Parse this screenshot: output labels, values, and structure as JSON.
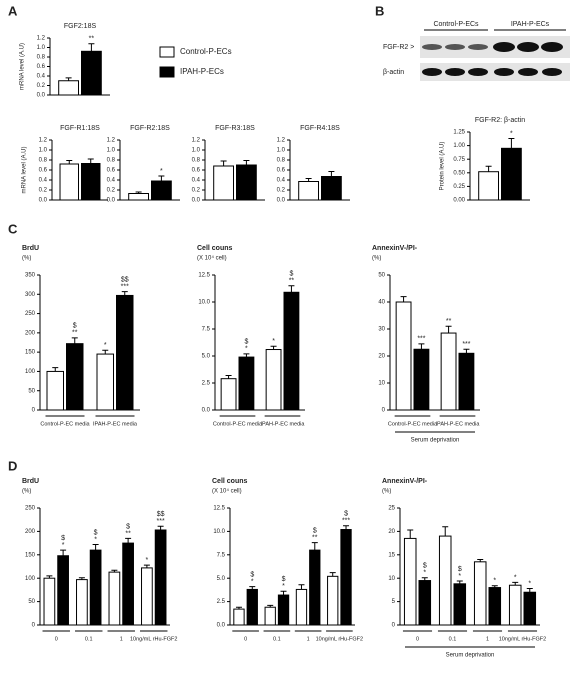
{
  "panels": [
    "A",
    "B",
    "C",
    "D"
  ],
  "legend": [
    {
      "name": "Control-P-ECs",
      "color": "#ffffff"
    },
    {
      "name": "IPAH-P-ECs",
      "color": "#000000"
    }
  ],
  "blot": {
    "lanes": [
      "Control-P-ECs",
      "IPAH-P-ECs"
    ],
    "rows": [
      "FGF-R2 >",
      "β-actin"
    ]
  },
  "chart_data": [
    {
      "type": "bar",
      "title": "FGF2:18S",
      "ylabel": "mRNA level (A.U)",
      "categories": [
        null
      ],
      "ylim": [
        0,
        1.2
      ],
      "yticks": [
        {
          "value": 0,
          "label": "0.0"
        },
        0.2,
        0.4,
        0.6,
        0.8,
        {
          "value": 1,
          "label": "1.0"
        },
        1.2
      ],
      "series": [
        {
          "color": "#ffffff",
          "values": [
            0.3
          ],
          "errors": [
            0.06
          ]
        },
        {
          "color": "#000000",
          "values": [
            0.92
          ],
          "errors": [
            0.16
          ],
          "annotations": [
            [
              "**"
            ]
          ]
        }
      ]
    },
    {
      "type": "bar",
      "title": "FGF-R1:18S",
      "ylabel": "mRNA level (A.U)",
      "categories": [
        null
      ],
      "ylim": [
        0,
        1.2
      ],
      "yticks": [
        {
          "value": 0,
          "label": "0.0"
        },
        0.2,
        0.4,
        0.6,
        0.8,
        {
          "value": 1,
          "label": "1.0"
        },
        1.2
      ],
      "series": [
        {
          "color": "#ffffff",
          "values": [
            0.72
          ],
          "errors": [
            0.07
          ]
        },
        {
          "color": "#000000",
          "values": [
            0.73
          ],
          "errors": [
            0.09
          ]
        }
      ]
    },
    {
      "type": "bar",
      "title": "FGF-R2:18S",
      "categories": [
        null
      ],
      "ylim": [
        0,
        1.2
      ],
      "yticks": [
        {
          "value": 0,
          "label": "0.0"
        },
        0.2,
        0.4,
        0.6,
        0.8,
        {
          "value": 1,
          "label": "1.0"
        },
        1.2
      ],
      "series": [
        {
          "color": "#ffffff",
          "values": [
            0.13
          ],
          "errors": [
            0.03
          ]
        },
        {
          "color": "#000000",
          "values": [
            0.38
          ],
          "errors": [
            0.1
          ],
          "annotations": [
            [
              "*"
            ]
          ]
        }
      ]
    },
    {
      "type": "bar",
      "title": "FGF-R3:18S",
      "categories": [
        null
      ],
      "ylim": [
        0,
        1.2
      ],
      "yticks": [
        {
          "value": 0,
          "label": "0.0"
        },
        0.2,
        0.4,
        0.6,
        0.8,
        {
          "value": 1,
          "label": "1.0"
        },
        1.2
      ],
      "series": [
        {
          "color": "#ffffff",
          "values": [
            0.68
          ],
          "errors": [
            0.1
          ]
        },
        {
          "color": "#000000",
          "values": [
            0.7
          ],
          "errors": [
            0.09
          ]
        }
      ]
    },
    {
      "type": "bar",
      "title": "FGF-R4:18S",
      "categories": [
        null
      ],
      "ylim": [
        0,
        1.2
      ],
      "yticks": [
        {
          "value": 0,
          "label": "0.0"
        },
        0.2,
        0.4,
        0.6,
        0.8,
        {
          "value": 1,
          "label": "1.0"
        },
        1.2
      ],
      "series": [
        {
          "color": "#ffffff",
          "values": [
            0.37
          ],
          "errors": [
            0.06
          ]
        },
        {
          "color": "#000000",
          "values": [
            0.47
          ],
          "errors": [
            0.1
          ]
        }
      ]
    },
    {
      "type": "bar",
      "title": "FGF-R2: β-actin",
      "ylabel": "Protein level (A.U)",
      "categories": [
        null
      ],
      "ylim": [
        0,
        1.25
      ],
      "yticks": [
        {
          "value": 0,
          "label": "0.00"
        },
        {
          "value": 0.25,
          "label": "0.25"
        },
        {
          "value": 0.5,
          "label": "0.50"
        },
        {
          "value": 0.75,
          "label": "0.75"
        },
        {
          "value": 1,
          "label": "1.00"
        },
        {
          "value": 1.25,
          "label": "1.25"
        }
      ],
      "series": [
        {
          "color": "#ffffff",
          "values": [
            0.52
          ],
          "errors": [
            0.1
          ]
        },
        {
          "color": "#000000",
          "values": [
            0.95
          ],
          "errors": [
            0.18
          ],
          "annotations": [
            [
              "*"
            ]
          ]
        }
      ]
    },
    {
      "type": "bar",
      "title": "BrdU",
      "unit": "(%)",
      "categories": [
        "Control-P-EC media",
        "IPAH-P-EC media"
      ],
      "ylim": [
        0,
        350
      ],
      "yticks": [
        0,
        50,
        100,
        150,
        200,
        250,
        300,
        350
      ],
      "series": [
        {
          "color": "#ffffff",
          "values": [
            100,
            145
          ],
          "errors": [
            10,
            10
          ],
          "annotations": [
            null,
            [
              "*"
            ]
          ]
        },
        {
          "color": "#000000",
          "values": [
            172,
            297
          ],
          "errors": [
            15,
            10
          ],
          "annotations": [
            [
              "$",
              "**"
            ],
            [
              "$$",
              "***"
            ]
          ]
        }
      ]
    },
    {
      "type": "bar",
      "title": "Cell couns",
      "unit": "(X 10⁴ cell)",
      "categories": [
        "Control-P-EC media",
        "IPAH-P-EC media"
      ],
      "ylim": [
        0,
        12.5
      ],
      "yticks": [
        {
          "value": 0,
          "label": "0.0"
        },
        2.5,
        {
          "value": 5,
          "label": "5.0"
        },
        7.5,
        {
          "value": 10,
          "label": "10.0"
        },
        12.5
      ],
      "series": [
        {
          "color": "#ffffff",
          "values": [
            2.9,
            5.6
          ],
          "errors": [
            0.3,
            0.3
          ],
          "annotations": [
            null,
            [
              "*"
            ]
          ]
        },
        {
          "color": "#000000",
          "values": [
            4.9,
            10.9
          ],
          "errors": [
            0.3,
            0.6
          ],
          "annotations": [
            [
              "$",
              "*"
            ],
            [
              "$",
              "**"
            ]
          ]
        }
      ]
    },
    {
      "type": "bar",
      "title": "AnnexinV-/PI-",
      "unit": "(%)",
      "categories": [
        "Control-P-EC media",
        "IPAH-P-EC media"
      ],
      "xgroup_label": "Serum deprivation",
      "ylim": [
        0,
        50
      ],
      "yticks": [
        0,
        10,
        20,
        30,
        40,
        50
      ],
      "series": [
        {
          "color": "#ffffff",
          "values": [
            40,
            28.5
          ],
          "errors": [
            2,
            2.5
          ],
          "annotations": [
            null,
            [
              "**"
            ]
          ]
        },
        {
          "color": "#000000",
          "values": [
            22.5,
            21
          ],
          "errors": [
            2,
            1.5
          ],
          "annotations": [
            [
              "***"
            ],
            [
              "***"
            ]
          ]
        }
      ]
    },
    {
      "type": "bar",
      "title": "BrdU",
      "unit": "(%)",
      "categories": [
        "0",
        "0.1",
        "1",
        "10ng/mL rHu-FGF2"
      ],
      "ylim": [
        0,
        250
      ],
      "yticks": [
        0,
        50,
        100,
        150,
        200,
        250
      ],
      "series": [
        {
          "color": "#ffffff",
          "values": [
            100,
            97,
            113,
            122
          ],
          "errors": [
            5,
            4,
            4,
            6
          ],
          "annotations": [
            null,
            null,
            null,
            [
              "*"
            ]
          ]
        },
        {
          "color": "#000000",
          "values": [
            148,
            160,
            175,
            203
          ],
          "errors": [
            12,
            12,
            10,
            8
          ],
          "annotations": [
            [
              "$",
              "*"
            ],
            [
              "$",
              "*"
            ],
            [
              "$",
              "**"
            ],
            [
              "$$",
              "***"
            ]
          ]
        }
      ]
    },
    {
      "type": "bar",
      "title": "Cell couns",
      "unit": "(X 10⁴ cell)",
      "categories": [
        "0",
        "0.1",
        "1",
        "10ng/mL rHu-FGF2"
      ],
      "ylim": [
        0,
        12.5
      ],
      "yticks": [
        {
          "value": 0,
          "label": "0.0"
        },
        2.5,
        {
          "value": 5,
          "label": "5.0"
        },
        7.5,
        {
          "value": 10,
          "label": "10.0"
        },
        12.5
      ],
      "series": [
        {
          "color": "#ffffff",
          "values": [
            1.7,
            1.9,
            3.8,
            5.2
          ],
          "errors": [
            0.2,
            0.2,
            0.5,
            0.4
          ],
          "annotations": [
            null,
            null,
            null,
            null
          ]
        },
        {
          "color": "#000000",
          "values": [
            3.8,
            3.2,
            8.0,
            10.2
          ],
          "errors": [
            0.3,
            0.4,
            0.8,
            0.4
          ],
          "annotations": [
            [
              "$",
              "*"
            ],
            [
              "$",
              "*"
            ],
            [
              "$",
              "**"
            ],
            [
              "$",
              "***"
            ]
          ]
        }
      ]
    },
    {
      "type": "bar",
      "title": "AnnexinV-/PI-",
      "unit": "(%)",
      "categories": [
        "0",
        "0.1",
        "1",
        "10ng/mL rHu-FGF2"
      ],
      "xgroup_label": "Serum deprivation",
      "ylim": [
        0,
        25
      ],
      "yticks": [
        0,
        5,
        10,
        15,
        20,
        25
      ],
      "series": [
        {
          "color": "#ffffff",
          "values": [
            18.5,
            19,
            13.5,
            8.5
          ],
          "errors": [
            1.8,
            2,
            0.5,
            0.6
          ],
          "annotations": [
            null,
            null,
            null,
            [
              "*"
            ]
          ]
        },
        {
          "color": "#000000",
          "values": [
            9.5,
            8.8,
            8,
            7
          ],
          "errors": [
            0.6,
            0.6,
            0.4,
            0.8
          ],
          "annotations": [
            [
              "$",
              "*"
            ],
            [
              "$",
              "*"
            ],
            [
              "*"
            ],
            [
              "*"
            ]
          ]
        }
      ]
    }
  ]
}
